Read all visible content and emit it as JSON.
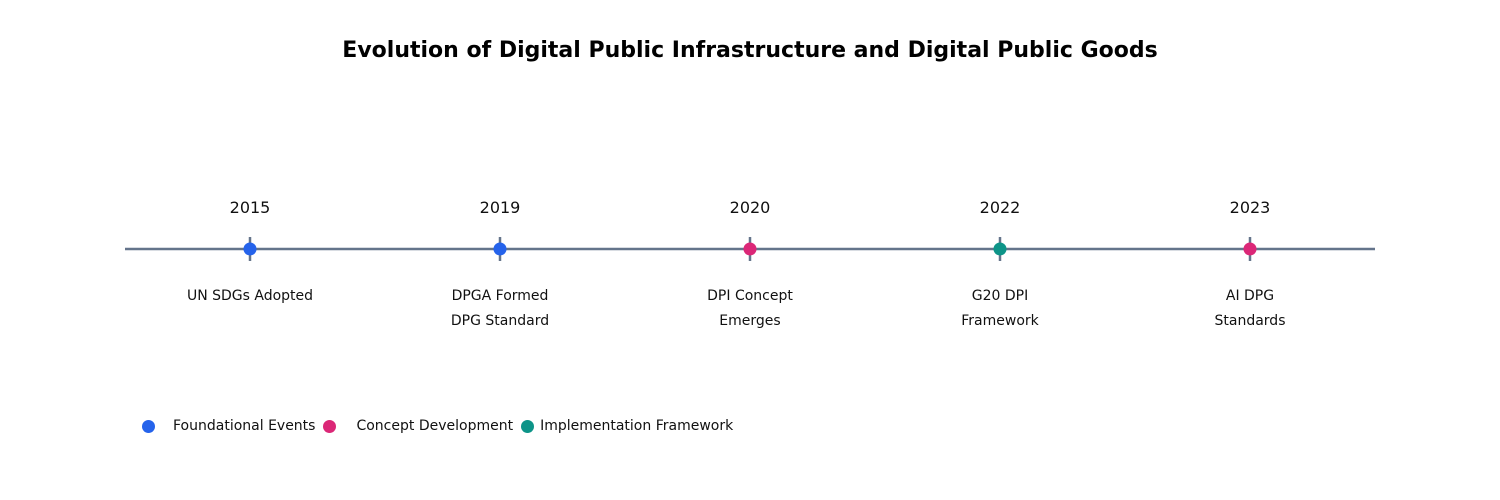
{
  "title": "Evolution of Digital Public Infrastructure and Digital Public Goods",
  "colors": {
    "axis": "#64748b",
    "foundational": "#2563eb",
    "concept": "#db2777",
    "implementation": "#0d9488"
  },
  "events": [
    {
      "year": "2015",
      "lines": [
        "UN SDGs Adopted"
      ],
      "category": "foundational"
    },
    {
      "year": "2019",
      "lines": [
        "DPGA Formed",
        "DPG Standard"
      ],
      "category": "foundational"
    },
    {
      "year": "2020",
      "lines": [
        "DPI Concept",
        "Emerges"
      ],
      "category": "concept"
    },
    {
      "year": "2022",
      "lines": [
        "G20 DPI",
        "Framework"
      ],
      "category": "implementation"
    },
    {
      "year": "2023",
      "lines": [
        "AI DPG",
        "Standards"
      ],
      "category": "concept"
    }
  ],
  "legend": [
    {
      "label": "Foundational Events",
      "category": "foundational"
    },
    {
      "label": "Concept Development",
      "category": "concept"
    },
    {
      "label": "Implementation Framework",
      "category": "implementation"
    }
  ]
}
